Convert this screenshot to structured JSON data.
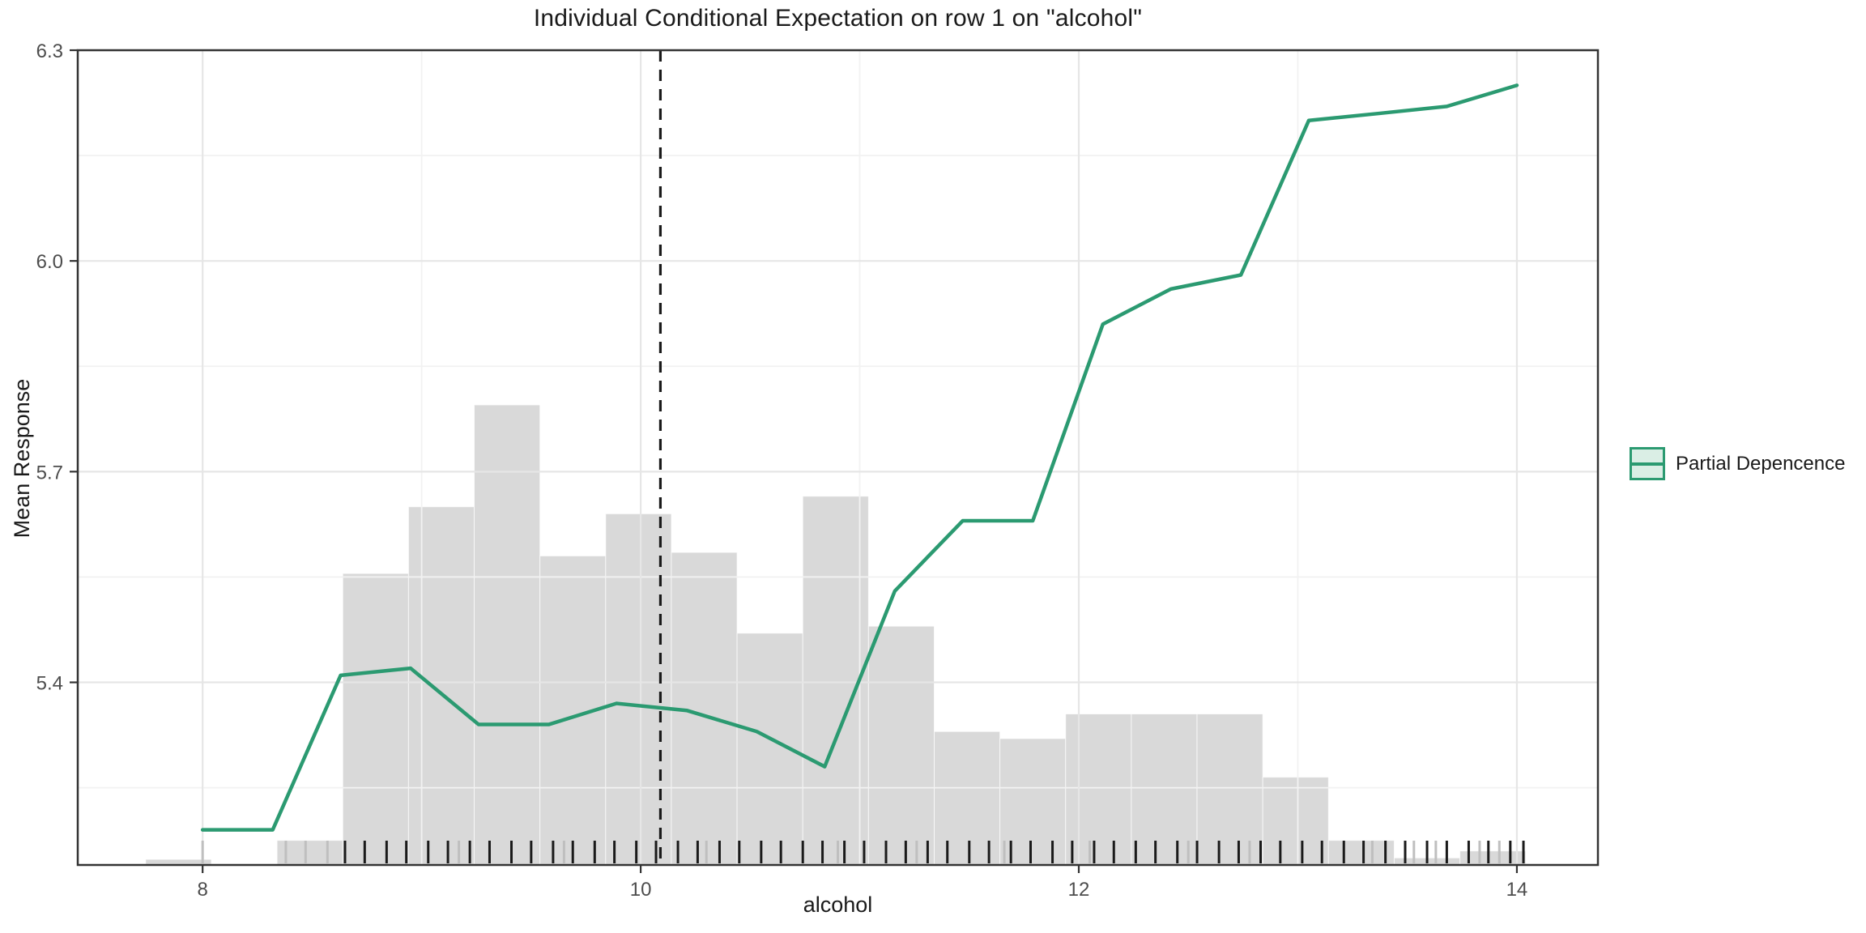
{
  "chart_data": {
    "type": "line",
    "title": "Individual Conditional Expectation on row 1 on \"alcohol\"",
    "xlabel": "alcohol",
    "ylabel": "Mean Response",
    "xlim": [
      7.43,
      14.37
    ],
    "ylim": [
      5.14,
      6.3
    ],
    "grid": "on",
    "x_ticks": [
      {
        "v": 8,
        "label": "8"
      },
      {
        "v": 10,
        "label": "10"
      },
      {
        "v": 12,
        "label": "12"
      },
      {
        "v": 14,
        "label": "14"
      }
    ],
    "x_minor": [
      9,
      11,
      13
    ],
    "y_ticks": [
      {
        "v": 5.4,
        "label": "5.4"
      },
      {
        "v": 5.7,
        "label": "5.7"
      },
      {
        "v": 6.0,
        "label": "6.0"
      },
      {
        "v": 6.3,
        "label": "6.3"
      }
    ],
    "y_minor": [
      5.25,
      5.55,
      5.85,
      6.15
    ],
    "vline_x": 10.09,
    "series": [
      {
        "name": "Partial Depencence",
        "type": "line",
        "x": [
          8.0,
          8.32,
          8.63,
          8.95,
          9.26,
          9.58,
          9.89,
          10.21,
          10.53,
          10.84,
          11.16,
          11.47,
          11.79,
          12.11,
          12.42,
          12.74,
          13.05,
          13.37,
          13.68,
          14.0
        ],
        "y": [
          5.19,
          5.19,
          5.41,
          5.42,
          5.34,
          5.34,
          5.37,
          5.36,
          5.33,
          5.28,
          5.53,
          5.63,
          5.63,
          5.91,
          5.96,
          5.98,
          6.2,
          6.21,
          6.22,
          6.25
        ]
      }
    ],
    "histogram": {
      "baseline": 5.14,
      "bins": [
        {
          "x0": 7.74,
          "x1": 8.04,
          "top": 5.148
        },
        {
          "x0": 8.34,
          "x1": 8.64,
          "top": 5.175
        },
        {
          "x0": 8.64,
          "x1": 8.94,
          "top": 5.555
        },
        {
          "x0": 8.94,
          "x1": 9.24,
          "top": 5.65
        },
        {
          "x0": 9.24,
          "x1": 9.54,
          "top": 5.795
        },
        {
          "x0": 9.54,
          "x1": 9.84,
          "top": 5.58
        },
        {
          "x0": 9.84,
          "x1": 10.14,
          "top": 5.64
        },
        {
          "x0": 10.14,
          "x1": 10.44,
          "top": 5.585
        },
        {
          "x0": 10.44,
          "x1": 10.74,
          "top": 5.47
        },
        {
          "x0": 10.74,
          "x1": 11.04,
          "top": 5.665
        },
        {
          "x0": 11.04,
          "x1": 11.34,
          "top": 5.48
        },
        {
          "x0": 11.34,
          "x1": 11.64,
          "top": 5.33
        },
        {
          "x0": 11.64,
          "x1": 11.94,
          "top": 5.32
        },
        {
          "x0": 11.94,
          "x1": 12.24,
          "top": 5.355
        },
        {
          "x0": 12.24,
          "x1": 12.54,
          "top": 5.355
        },
        {
          "x0": 12.54,
          "x1": 12.84,
          "top": 5.355
        },
        {
          "x0": 12.84,
          "x1": 13.14,
          "top": 5.265
        },
        {
          "x0": 13.14,
          "x1": 13.44,
          "top": 5.175
        },
        {
          "x0": 13.44,
          "x1": 13.74,
          "top": 5.15
        },
        {
          "x0": 13.74,
          "x1": 14.04,
          "top": 5.16
        }
      ]
    },
    "rug": {
      "dark": [
        8.65,
        8.74,
        8.84,
        8.93,
        9.03,
        9.12,
        9.22,
        9.31,
        9.41,
        9.5,
        9.6,
        9.69,
        9.79,
        9.88,
        9.98,
        10.07,
        10.17,
        10.26,
        10.36,
        10.45,
        10.55,
        10.64,
        10.74,
        10.83,
        10.93,
        11.02,
        11.12,
        11.21,
        11.31,
        11.4,
        11.5,
        11.59,
        11.69,
        11.78,
        11.88,
        11.97,
        12.07,
        12.16,
        12.26,
        12.35,
        12.45,
        12.54,
        12.64,
        12.73,
        12.83,
        12.92,
        13.02,
        13.11,
        13.21,
        13.3,
        13.4,
        13.49,
        13.59,
        13.68,
        13.78,
        13.87,
        13.97,
        14.03
      ],
      "light": [
        8.0,
        8.38,
        8.47,
        8.57,
        9.17,
        9.65,
        10.3,
        10.9,
        11.26,
        11.66,
        12.05,
        12.5,
        12.78,
        13.34,
        13.53,
        13.63,
        13.83,
        13.92
      ]
    },
    "legend": {
      "label": "Partial Depencence",
      "position": "right"
    },
    "colors": {
      "line": "#2b9a71",
      "legend_fill": "#daeee5",
      "hist": "#d9d9d9",
      "hist_seam": "rgba(255,255,255,0.7)",
      "grid_major": "#e6e6e6",
      "grid_minor": "#f2f2f2",
      "border": "#333333",
      "tick_text": "#4d4d4d",
      "vline": "#1a1a1a",
      "rug_dark": "#1a1a1a",
      "rug_light": "#bfbfbf"
    }
  }
}
